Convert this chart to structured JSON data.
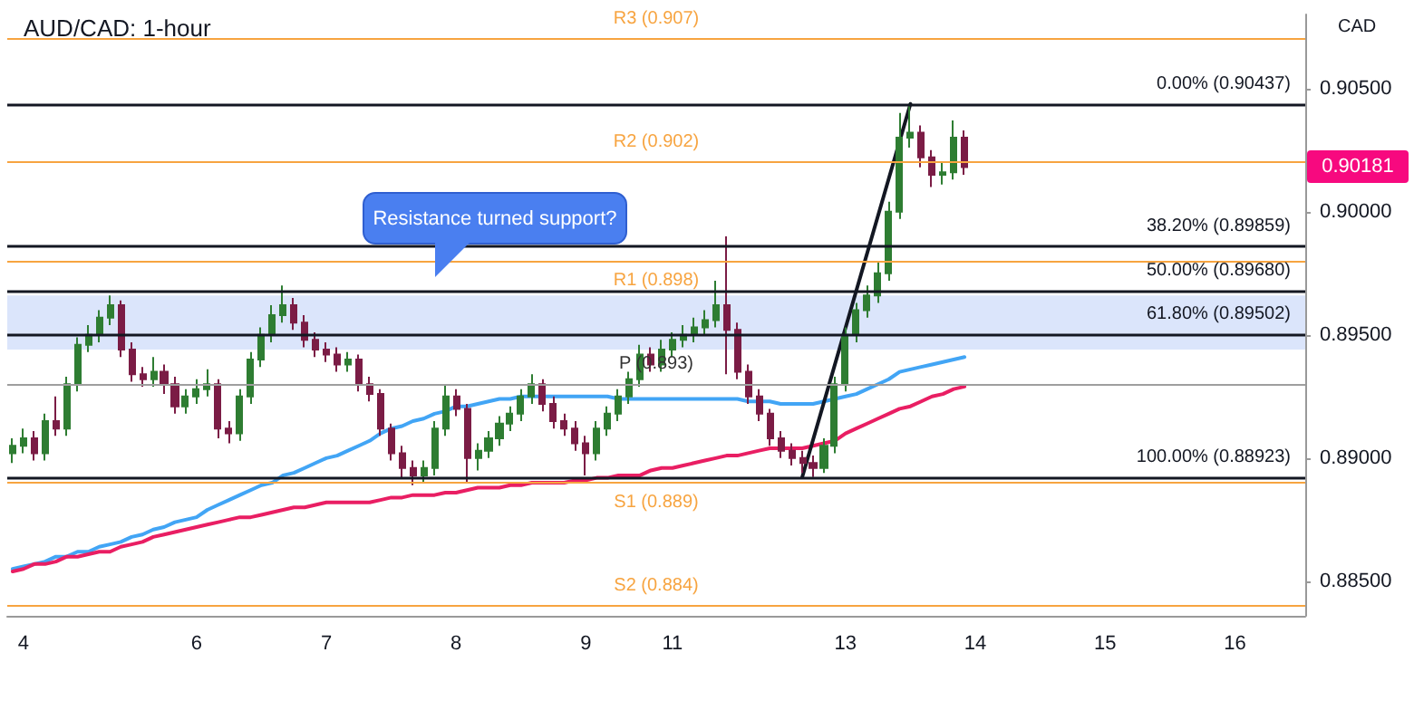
{
  "chart_data": {
    "type": "candlestick",
    "title": "AUD/CAD: 1-hour",
    "ylabel": "CAD",
    "categories": [
      null,
      "4",
      null,
      null,
      null,
      null,
      null,
      null,
      null,
      null,
      null,
      null,
      null,
      null,
      null,
      null,
      null,
      "6",
      null,
      null,
      null,
      null,
      null,
      null,
      null,
      null,
      null,
      null,
      null,
      "7",
      null,
      null,
      null,
      null,
      null,
      null,
      null,
      null,
      null,
      null,
      null,
      "8",
      null,
      null,
      null,
      null,
      null,
      null,
      null,
      null,
      null,
      null,
      null,
      "9",
      null,
      null,
      null,
      null,
      null,
      null,
      null,
      "11",
      null,
      null,
      null,
      null,
      null,
      null,
      null,
      null,
      null,
      null,
      null,
      null,
      null,
      null,
      null,
      "13",
      null,
      null,
      null,
      null,
      null,
      null,
      null,
      null,
      null,
      null,
      null,
      "14",
      null,
      null,
      null,
      null,
      null,
      null,
      null,
      null,
      null,
      null,
      null,
      "15",
      null,
      null,
      null,
      null,
      null,
      null,
      null,
      null,
      null,
      null,
      null,
      "16",
      null,
      null,
      null,
      null,
      null,
      null
    ],
    "ohlc": [
      [
        0.8902,
        0.8908,
        0.8898,
        0.8905
      ],
      [
        0.8905,
        0.8912,
        0.8902,
        0.8908
      ],
      [
        0.8908,
        0.8911,
        0.8899,
        0.8902
      ],
      [
        0.8902,
        0.8918,
        0.8899,
        0.8915
      ],
      [
        0.8915,
        0.8925,
        0.8909,
        0.8912
      ],
      [
        0.8912,
        0.8933,
        0.8909,
        0.893
      ],
      [
        0.893,
        0.8949,
        0.8927,
        0.8946
      ],
      [
        0.8946,
        0.8954,
        0.8943,
        0.895
      ],
      [
        0.895,
        0.896,
        0.8947,
        0.8957
      ],
      [
        0.8957,
        0.8966,
        0.8954,
        0.8962
      ],
      [
        0.8962,
        0.8964,
        0.8941,
        0.8944
      ],
      [
        0.8944,
        0.8947,
        0.8931,
        0.8934
      ],
      [
        0.8934,
        0.8937,
        0.8929,
        0.8932
      ],
      [
        0.8932,
        0.8941,
        0.8929,
        0.8935
      ],
      [
        0.8935,
        0.8938,
        0.8926,
        0.893
      ],
      [
        0.893,
        0.8933,
        0.8918,
        0.8921
      ],
      [
        0.8921,
        0.8928,
        0.8918,
        0.8925
      ],
      [
        0.8925,
        0.8932,
        0.8922,
        0.8928
      ],
      [
        0.8928,
        0.8936,
        0.8925,
        0.893
      ],
      [
        0.893,
        0.8932,
        0.8908,
        0.8912
      ],
      [
        0.8912,
        0.8915,
        0.8906,
        0.891
      ],
      [
        0.891,
        0.8928,
        0.8907,
        0.8925
      ],
      [
        0.8925,
        0.8943,
        0.8922,
        0.894
      ],
      [
        0.894,
        0.8953,
        0.8937,
        0.895
      ],
      [
        0.895,
        0.8962,
        0.8947,
        0.8958
      ],
      [
        0.8958,
        0.897,
        0.8955,
        0.8962
      ],
      [
        0.8962,
        0.8965,
        0.8952,
        0.8955
      ],
      [
        0.8955,
        0.8958,
        0.8945,
        0.8948
      ],
      [
        0.8948,
        0.8951,
        0.8941,
        0.8944
      ],
      [
        0.8944,
        0.8947,
        0.8939,
        0.8942
      ],
      [
        0.8942,
        0.8945,
        0.8935,
        0.8938
      ],
      [
        0.8938,
        0.8943,
        0.8935,
        0.894
      ],
      [
        0.894,
        0.8942,
        0.8927,
        0.893
      ],
      [
        0.893,
        0.8933,
        0.8923,
        0.8926
      ],
      [
        0.8926,
        0.8928,
        0.8909,
        0.8912
      ],
      [
        0.8912,
        0.8914,
        0.8899,
        0.8902
      ],
      [
        0.8902,
        0.8905,
        0.8892,
        0.8896
      ],
      [
        0.8896,
        0.8899,
        0.8889,
        0.8893
      ],
      [
        0.8893,
        0.8899,
        0.889,
        0.8896
      ],
      [
        0.8896,
        0.8915,
        0.8893,
        0.8912
      ],
      [
        0.8912,
        0.893,
        0.8909,
        0.8925
      ],
      [
        0.8925,
        0.8928,
        0.8917,
        0.892
      ],
      [
        0.892,
        0.8922,
        0.889,
        0.89
      ],
      [
        0.89,
        0.8906,
        0.8895,
        0.8903
      ],
      [
        0.8903,
        0.8911,
        0.89,
        0.8908
      ],
      [
        0.8908,
        0.8917,
        0.8905,
        0.8914
      ],
      [
        0.8914,
        0.8921,
        0.8911,
        0.8918
      ],
      [
        0.8918,
        0.8928,
        0.8915,
        0.8925
      ],
      [
        0.8925,
        0.8934,
        0.8922,
        0.893
      ],
      [
        0.893,
        0.8932,
        0.8919,
        0.8922
      ],
      [
        0.8922,
        0.8925,
        0.8912,
        0.8915
      ],
      [
        0.8915,
        0.8918,
        0.8909,
        0.8912
      ],
      [
        0.8912,
        0.8915,
        0.8903,
        0.8906
      ],
      [
        0.8906,
        0.8909,
        0.8893,
        0.8902
      ],
      [
        0.8902,
        0.8915,
        0.8899,
        0.8912
      ],
      [
        0.8912,
        0.8921,
        0.8909,
        0.8918
      ],
      [
        0.8918,
        0.8928,
        0.8915,
        0.8925
      ],
      [
        0.8925,
        0.8935,
        0.8922,
        0.8932
      ],
      [
        0.8932,
        0.8946,
        0.8929,
        0.8942
      ],
      [
        0.8942,
        0.8945,
        0.8935,
        0.8938
      ],
      [
        0.8938,
        0.8948,
        0.8935,
        0.8944
      ],
      [
        0.8944,
        0.8951,
        0.8941,
        0.8948
      ],
      [
        0.8948,
        0.8954,
        0.8945,
        0.895
      ],
      [
        0.895,
        0.8957,
        0.8947,
        0.8953
      ],
      [
        0.8953,
        0.896,
        0.895,
        0.8956
      ],
      [
        0.8956,
        0.8972,
        0.8953,
        0.8962
      ],
      [
        0.8962,
        0.899,
        0.8934,
        0.8952
      ],
      [
        0.8952,
        0.8955,
        0.8932,
        0.8935
      ],
      [
        0.8935,
        0.8938,
        0.8922,
        0.8925
      ],
      [
        0.8925,
        0.8928,
        0.8915,
        0.8918
      ],
      [
        0.8918,
        0.892,
        0.8905,
        0.8908
      ],
      [
        0.8908,
        0.8911,
        0.89,
        0.8903
      ],
      [
        0.8903,
        0.8906,
        0.8897,
        0.89
      ],
      [
        0.89,
        0.8903,
        0.8894,
        0.8898
      ],
      [
        0.8898,
        0.8901,
        0.88923,
        0.8896
      ],
      [
        0.8896,
        0.8908,
        0.8894,
        0.8905
      ],
      [
        0.8905,
        0.8933,
        0.8902,
        0.893
      ],
      [
        0.893,
        0.8953,
        0.8927,
        0.895
      ],
      [
        0.895,
        0.8963,
        0.8947,
        0.896
      ],
      [
        0.896,
        0.897,
        0.8957,
        0.8966
      ],
      [
        0.8966,
        0.898,
        0.8963,
        0.8975
      ],
      [
        0.8975,
        0.9004,
        0.8972,
        0.9
      ],
      [
        0.9,
        0.904,
        0.8997,
        0.903
      ],
      [
        0.903,
        0.90437,
        0.9026,
        0.9032
      ],
      [
        0.9032,
        0.9035,
        0.9018,
        0.9022
      ],
      [
        0.9022,
        0.9025,
        0.901,
        0.9015
      ],
      [
        0.9015,
        0.902,
        0.9011,
        0.9016
      ],
      [
        0.9016,
        0.9037,
        0.9013,
        0.903
      ],
      [
        0.903,
        0.9033,
        0.9015,
        0.90181
      ],
      null,
      null,
      null,
      null,
      null,
      null,
      null,
      null,
      null,
      null,
      null,
      null,
      null,
      null,
      null,
      null,
      null,
      null,
      null,
      null,
      null,
      null,
      null,
      null,
      null,
      null,
      null,
      null,
      null,
      null,
      null
    ],
    "series": [
      {
        "type": "line",
        "color": "#42a5f5",
        "values": [
          0.8855,
          0.8856,
          0.8857,
          0.8858,
          0.886,
          0.886,
          0.8862,
          0.8862,
          0.8864,
          0.8865,
          0.8866,
          0.8868,
          0.8869,
          0.8871,
          0.8872,
          0.8874,
          0.8875,
          0.8876,
          0.8879,
          0.8881,
          0.8883,
          0.8885,
          0.8887,
          0.8889,
          0.889,
          0.8893,
          0.8894,
          0.8896,
          0.8898,
          0.89,
          0.8901,
          0.8903,
          0.8905,
          0.8907,
          0.891,
          0.8912,
          0.8913,
          0.8915,
          0.8916,
          0.8918,
          0.8919,
          0.8921,
          0.8921,
          0.8922,
          0.8923,
          0.8924,
          0.8924,
          0.8925,
          0.8925,
          0.8925,
          0.8925,
          0.8925,
          0.8925,
          0.8925,
          0.8925,
          0.8925,
          0.8924,
          0.8924,
          0.8924,
          0.8924,
          0.8924,
          0.8924,
          0.8924,
          0.8924,
          0.8924,
          0.8924,
          0.8924,
          0.8924,
          0.8923,
          0.8923,
          0.8923,
          0.8922,
          0.8922,
          0.8922,
          0.8922,
          0.8923,
          0.8924,
          0.8925,
          0.8926,
          0.8928,
          0.893,
          0.8932,
          0.8935,
          0.8936,
          0.8937,
          0.8938,
          0.8939,
          0.894,
          0.8941,
          null,
          null,
          null,
          null,
          null,
          null,
          null,
          null,
          null,
          null,
          null,
          null,
          null,
          null,
          null,
          null,
          null,
          null,
          null,
          null,
          null,
          null,
          null,
          null,
          null,
          null,
          null,
          null,
          null,
          null,
          null
        ]
      },
      {
        "type": "line",
        "color": "#e91e63",
        "values": [
          0.8854,
          0.8855,
          0.8857,
          0.8857,
          0.8858,
          0.886,
          0.886,
          0.8861,
          0.8862,
          0.8862,
          0.8864,
          0.8865,
          0.8866,
          0.8868,
          0.8869,
          0.887,
          0.8871,
          0.8872,
          0.8873,
          0.8874,
          0.8875,
          0.8876,
          0.8876,
          0.8877,
          0.8878,
          0.8879,
          0.888,
          0.888,
          0.8881,
          0.8882,
          0.8882,
          0.8882,
          0.8882,
          0.8882,
          0.8883,
          0.8884,
          0.8884,
          0.8885,
          0.8885,
          0.8885,
          0.8886,
          0.8886,
          0.8887,
          0.8888,
          0.8888,
          0.8888,
          0.8889,
          0.8889,
          0.889,
          0.889,
          0.889,
          0.889,
          0.8891,
          0.8891,
          0.8892,
          0.8892,
          0.8893,
          0.8893,
          0.8893,
          0.8895,
          0.8896,
          0.8896,
          0.8897,
          0.8898,
          0.8899,
          0.89,
          0.8901,
          0.8901,
          0.8902,
          0.8903,
          0.8904,
          0.8904,
          0.8904,
          0.8904,
          0.8905,
          0.8906,
          0.8907,
          0.891,
          0.8912,
          0.8914,
          0.8916,
          0.8918,
          0.892,
          0.8921,
          0.8923,
          0.8925,
          0.8926,
          0.8928,
          0.8929,
          null,
          null,
          null,
          null,
          null,
          null,
          null,
          null,
          null,
          null,
          null,
          null,
          null,
          null,
          null,
          null,
          null,
          null,
          null,
          null,
          null,
          null,
          null,
          null,
          null,
          null,
          null,
          null,
          null,
          null,
          null
        ]
      },
      {
        "type": "line",
        "color": "#131722",
        "values": [
          null,
          null,
          null,
          null,
          null,
          null,
          null,
          null,
          null,
          null,
          null,
          null,
          null,
          null,
          null,
          null,
          null,
          null,
          null,
          null,
          null,
          null,
          null,
          null,
          null,
          null,
          null,
          null,
          null,
          null,
          null,
          null,
          null,
          null,
          null,
          null,
          null,
          null,
          null,
          null,
          null,
          null,
          null,
          null,
          null,
          null,
          null,
          null,
          null,
          null,
          null,
          null,
          null,
          null,
          null,
          null,
          null,
          null,
          null,
          null,
          null,
          null,
          null,
          null,
          null,
          null,
          null,
          null,
          null,
          null,
          null,
          null,
          null,
          0.88923,
          null,
          null,
          null,
          null,
          null,
          null,
          null,
          null,
          null,
          0.90437,
          null,
          null,
          null,
          null,
          null,
          null,
          null,
          null,
          null,
          null,
          null,
          null,
          null,
          null,
          null,
          null,
          null,
          null,
          null,
          null,
          null,
          null,
          null,
          null,
          null,
          null,
          null,
          null,
          null,
          null,
          null,
          null,
          null,
          null,
          null,
          null
        ]
      }
    ],
    "ylim": [
      0.8836,
      0.908
    ],
    "yticks": [
      {
        "value": 0.885,
        "label": "0.88500"
      },
      {
        "value": 0.89,
        "label": "0.89000"
      },
      {
        "value": 0.895,
        "label": "0.89500"
      },
      {
        "value": 0.9,
        "label": "0.90000"
      },
      {
        "value": 0.905,
        "label": "0.90500"
      }
    ],
    "ref_lines": [
      {
        "axis": "y",
        "value": 0.907,
        "label": "R3 (0.907)",
        "color": "#f7a440"
      },
      {
        "axis": "y",
        "value": 0.902,
        "label": "R2 (0.902)",
        "color": "#f7a440"
      },
      {
        "axis": "y",
        "value": 0.898,
        "label": "R1 (0.898)",
        "color": "#f7a440"
      },
      {
        "axis": "y",
        "value": 0.893,
        "label": "P (0.893)",
        "color": "#9e9e9e"
      },
      {
        "axis": "y",
        "value": 0.889,
        "label": "S1 (0.889)",
        "color": "#f7a440"
      },
      {
        "axis": "y",
        "value": 0.884,
        "label": "S2 (0.884)",
        "color": "#f7a440"
      },
      {
        "axis": "y",
        "value": 0.90437,
        "label": "0.00% (0.90437)",
        "color": "#131722"
      },
      {
        "axis": "y",
        "value": 0.89859,
        "label": "38.20% (0.89859)",
        "color": "#131722"
      },
      {
        "axis": "y",
        "value": 0.8968,
        "label": "50.00% (0.89680)",
        "color": "#131722"
      },
      {
        "axis": "y",
        "value": 0.89502,
        "label": "61.80% (0.89502)",
        "color": "#131722"
      },
      {
        "axis": "y",
        "value": 0.88923,
        "label": "100.00% (0.88923)",
        "color": "#131722"
      }
    ],
    "bands": [
      {
        "axis": "y",
        "from": 0.8944,
        "to": 0.8966,
        "color": "#dbe5fb"
      }
    ],
    "annotations": [
      "Resistance turned support?",
      "0.90181"
    ]
  }
}
